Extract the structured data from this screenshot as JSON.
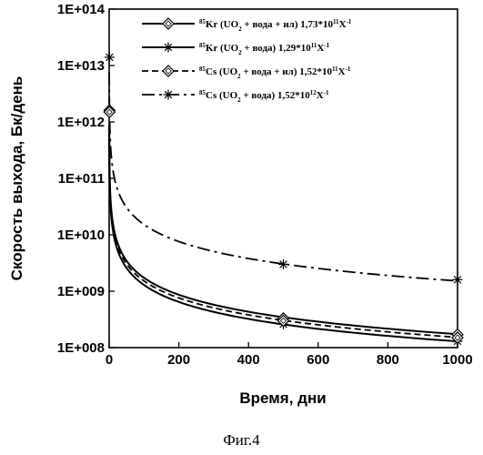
{
  "caption": "Фиг.4",
  "chart_data": {
    "type": "line",
    "xlabel": "Время, дни",
    "ylabel": "Скорость выхода, Бк/день",
    "xlim": [
      0,
      1000
    ],
    "ylim": [
      100000000.0,
      100000000000000.0
    ],
    "yscale": "log",
    "x_ticks": [
      "0",
      "200",
      "400",
      "600",
      "800",
      "1000"
    ],
    "y_ticks": [
      "1E+008",
      "1E+009",
      "1E+010",
      "1E+011",
      "1E+012",
      "1E+013",
      "1E+014"
    ],
    "grid": false,
    "legend_position": "top-right",
    "series": [
      {
        "name": "85Kr (UO2 + вода + ил) 1,73*10¹¹X⁻¹",
        "legend": {
          "iso": "85",
          "el": "Kr",
          "uo": "(UO",
          "sub": "2",
          "rest": " + вода + ил) 1,73*10",
          "exp": "11",
          "x": "X",
          "xexp": "-1"
        },
        "style": "solid",
        "marker": "diamond",
        "coef": 173000000000.0,
        "marked_points": [
          [
            1,
            1600000000000.0
          ],
          [
            500,
            330000000.0
          ],
          [
            1000,
            170000000.0
          ]
        ]
      },
      {
        "name": "85Kr (UO2 + вода) 1,29*10¹¹X⁻¹",
        "legend": {
          "iso": "85",
          "el": "Kr",
          "uo": "(UO",
          "sub": "2",
          "rest": " + вода) 1,29*10",
          "exp": "11",
          "x": "X",
          "xexp": "-1"
        },
        "style": "solid",
        "marker": "star",
        "coef": 129000000000.0,
        "marked_points": [
          [
            1,
            14000000000000.0
          ],
          [
            500,
            260000000.0
          ],
          [
            1000,
            130000000.0
          ]
        ]
      },
      {
        "name": "85Cs (UO2 + вода + ил) 1,52*10¹¹X⁻¹",
        "legend": {
          "iso": "85",
          "el": "Cs",
          "uo": "(UO",
          "sub": "2",
          "rest": " + вода + ил) 1,52*10",
          "exp": "11",
          "x": "X",
          "xexp": "-1"
        },
        "style": "dash",
        "marker": "diamond",
        "coef": 152000000000.0,
        "marked_points": [
          [
            1,
            1500000000000.0
          ],
          [
            500,
            300000000.0
          ],
          [
            1000,
            150000000.0
          ]
        ]
      },
      {
        "name": "85Cs (UO2 + вода) 1,52*10¹²X⁻¹",
        "legend": {
          "iso": "85",
          "el": "Cs",
          "uo": "(UO",
          "sub": "2",
          "rest": " + вода) 1,52*10",
          "exp": "12",
          "x": "X",
          "xexp": "-1"
        },
        "style": "dashdot",
        "marker": "star",
        "coef": 1520000000000.0,
        "marked_points": [
          [
            500,
            3000000000.0
          ],
          [
            1000,
            1600000000.0
          ]
        ]
      }
    ]
  }
}
